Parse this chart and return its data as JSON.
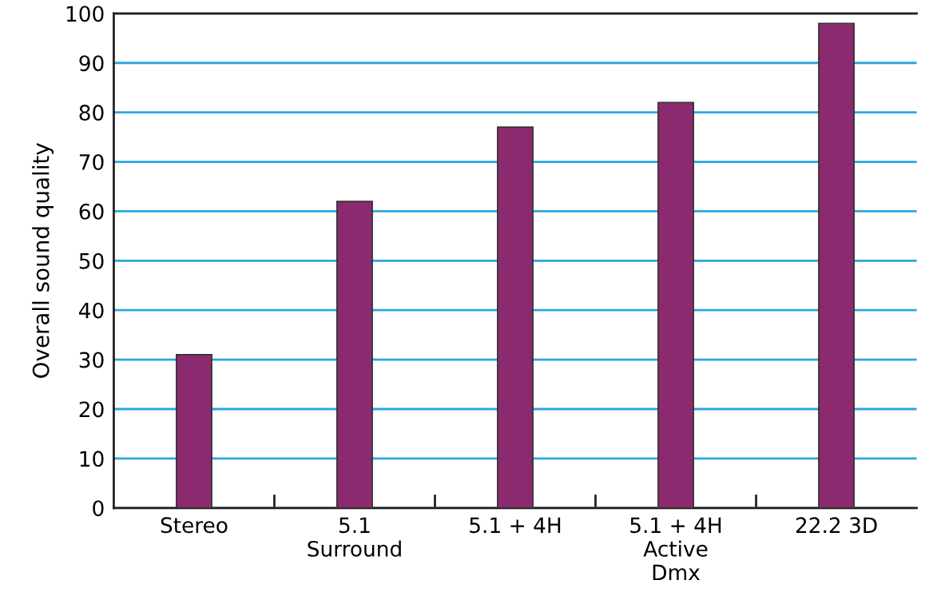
{
  "chart_data": {
    "type": "bar",
    "ylabel": "Overall sound quality",
    "categories": [
      "Stereo",
      "5.1\nSurround",
      "5.1 + 4H",
      "5.1 + 4H\nActive\nDmx",
      "22.2 3D"
    ],
    "values": [
      31,
      62,
      77,
      82,
      98
    ],
    "color": "#8b2a6e",
    "ylim": [
      0,
      100
    ],
    "yticks": [
      0,
      10,
      20,
      30,
      40,
      50,
      60,
      70,
      80,
      90,
      100
    ],
    "grid": "y"
  }
}
